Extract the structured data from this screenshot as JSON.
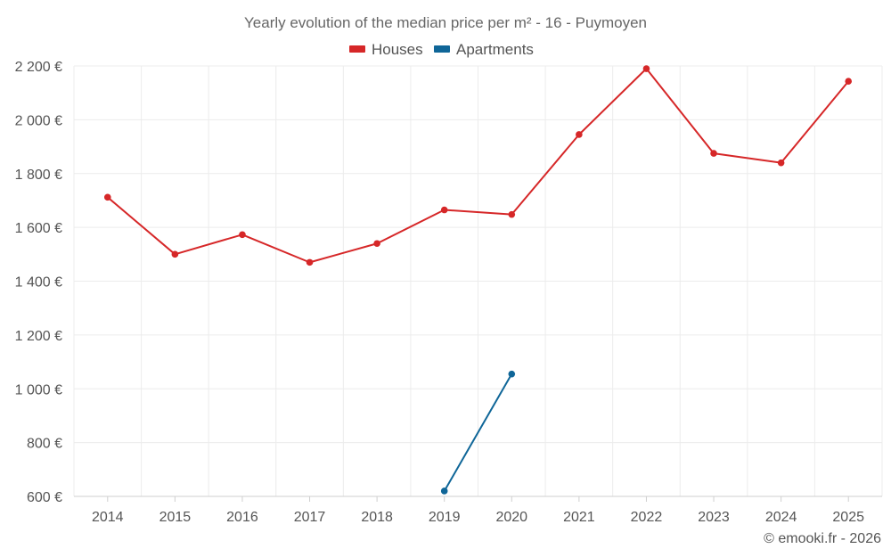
{
  "chart_data": {
    "type": "line",
    "title": "Yearly evolution of the median price per m² - 16 - Puymoyen",
    "categories": [
      "2014",
      "2015",
      "2016",
      "2017",
      "2018",
      "2019",
      "2020",
      "2021",
      "2022",
      "2023",
      "2024",
      "2025"
    ],
    "series": [
      {
        "name": "Houses",
        "color": "#d62728",
        "values": [
          1712,
          1500,
          1573,
          1470,
          1540,
          1665,
          1648,
          1945,
          2190,
          1875,
          1840,
          2143
        ]
      },
      {
        "name": "Apartments",
        "color": "#0f6698",
        "values": [
          null,
          null,
          null,
          null,
          null,
          620,
          1055,
          null,
          null,
          null,
          null,
          null
        ]
      }
    ],
    "ylim": [
      600,
      2200
    ],
    "yticks": [
      600,
      800,
      1000,
      1200,
      1400,
      1600,
      1800,
      2000,
      2200
    ],
    "ytick_labels": [
      "600 €",
      "800 €",
      "1 000 €",
      "1 200 €",
      "1 400 €",
      "1 600 €",
      "1 800 €",
      "2 000 €",
      "2 200 €"
    ],
    "xlabel": "",
    "ylabel": "",
    "grid": true,
    "legend_position": "top-center"
  },
  "credit": "© emooki.fr - 2026"
}
